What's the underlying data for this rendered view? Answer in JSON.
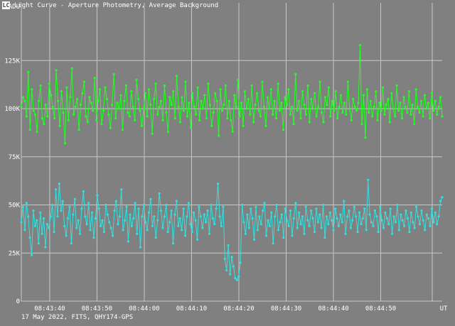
{
  "window": {
    "icon": "app-icon",
    "icon_glyph": "LC",
    "title": "Light Curve - Aperture Photometry, Average Background"
  },
  "footer": {
    "text": "17 May 2022, FITS, QHY174-GPS"
  },
  "colors": {
    "background": "#808080",
    "grid": "#c8c8c8",
    "axis_text": "#ffffff",
    "series_green": "#22ff22",
    "series_cyan": "#33e0e0"
  },
  "chart_data": {
    "type": "line",
    "title": "Light Curve - Aperture Photometry, Average Background",
    "ylabel": "ADU",
    "xlabel": "UT",
    "ylim": [
      0,
      155000
    ],
    "y_ticks": [
      {
        "value": 0,
        "label": "0"
      },
      {
        "value": 25000,
        "label": "25K"
      },
      {
        "value": 50000,
        "label": "50K"
      },
      {
        "value": 75000,
        "label": "75K"
      },
      {
        "value": 100000,
        "label": "100K"
      },
      {
        "value": 125000,
        "label": "125K"
      }
    ],
    "xlim": [
      "08:43:34",
      "08:45:03"
    ],
    "x_ticks": [
      "08:43:40",
      "08:43:50",
      "08:44:00",
      "08:44:10",
      "08:44:20",
      "08:44:30",
      "08:44:40",
      "08:44:50"
    ],
    "series": [
      {
        "color": "#22ff22",
        "x_start": "08:43:34",
        "x_end": "08:45:03",
        "values": [
          101000,
          106000,
          104000,
          96000,
          119000,
          89000,
          110000,
          99000,
          97000,
          88000,
          104000,
          112000,
          95000,
          92000,
          102000,
          96000,
          113000,
          107000,
          101000,
          95000,
          120000,
          104000,
          91000,
          109000,
          98000,
          82000,
          111000,
          94000,
          106000,
          121000,
          97000,
          101000,
          105000,
          89000,
          102000,
          108000,
          114000,
          96000,
          93000,
          106000,
          103000,
          99000,
          116000,
          94000,
          104000,
          110000,
          92000,
          99000,
          111000,
          105000,
          97000,
          90000,
          102000,
          118000,
          95000,
          103000,
          100000,
          107000,
          89000,
          104000,
          112000,
          98000,
          96000,
          109000,
          101000,
          94000,
          115000,
          105000,
          99000,
          91000,
          100000,
          108000,
          96000,
          110000,
          102000,
          87000,
          105000,
          113000,
          97000,
          101000,
          104000,
          94000,
          112000,
          98000,
          88000,
          106000,
          102000,
          109000,
          95000,
          117000,
          101000,
          93000,
          106000,
          99000,
          114000,
          96000,
          103000,
          90000,
          108000,
          101000,
          97000,
          111000,
          94000,
          104000,
          100000,
          107000,
          95000,
          113000,
          102000,
          91000,
          98000,
          108000,
          104000,
          86000,
          110000,
          99000,
          102000,
          112000,
          95000,
          104000,
          94000,
          88000,
          107000,
          101000,
          115000,
          96000,
          103000,
          91000,
          109000,
          100000,
          105000,
          97000,
          112000,
          93000,
          102000,
          108000,
          99000,
          96000,
          114000,
          101000,
          91000,
          106000,
          100000,
          110000,
          97000,
          104000,
          95000,
          113000,
          99000,
          103000,
          89000,
          106000,
          102000,
          110000,
          97000,
          101000,
          92000,
          118000,
          99000,
          104000,
          95000,
          109000,
          102000,
          97000,
          112000,
          93000,
          105000,
          100000,
          108000,
          96000,
          101000,
          114000,
          98000,
          93000,
          106000,
          102000,
          111000,
          96000,
          104000,
          99000,
          109000,
          95000,
          101000,
          107000,
          98000,
          103000,
          97000,
          114000,
          100000,
          94000,
          105000,
          101000,
          99000,
          103000,
          133000,
          92000,
          107000,
          85000,
          110000,
          98000,
          104000,
          96000,
          101000,
          109000,
          94000,
          103000,
          99000,
          111000,
          97000,
          102000,
          105000,
          93000,
          108000,
          100000,
          96000,
          112000,
          99000,
          103000,
          95000,
          106000,
          101000,
          98000,
          109000,
          97000,
          102000,
          92000,
          110000,
          101000,
          98000,
          104000,
          96000,
          107000,
          100000,
          103000,
          95000,
          108000,
          99000,
          104000,
          97000,
          101000,
          106000,
          96000
        ]
      },
      {
        "color": "#33e0e0",
        "x_start": "08:43:34",
        "x_end": "08:45:03",
        "values": [
          41000,
          49000,
          37000,
          51000,
          44000,
          33000,
          24000,
          47000,
          39000,
          42000,
          30000,
          46000,
          35000,
          43000,
          28000,
          40000,
          38000,
          44000,
          50000,
          36000,
          58000,
          44000,
          61000,
          47000,
          52000,
          39000,
          34000,
          43000,
          49000,
          30000,
          45000,
          53000,
          38000,
          42000,
          35000,
          48000,
          57000,
          44000,
          40000,
          51000,
          37000,
          46000,
          33000,
          43000,
          55000,
          48000,
          39000,
          42000,
          36000,
          50000,
          45000,
          41000,
          38000,
          34000,
          47000,
          52000,
          40000,
          44000,
          58000,
          37000,
          42000,
          49000,
          31000,
          45000,
          39000,
          43000,
          51000,
          35000,
          48000,
          28000,
          44000,
          50000,
          41000,
          37000,
          46000,
          53000,
          39000,
          44000,
          33000,
          42000,
          56000,
          47000,
          38000,
          44000,
          50000,
          36000,
          41000,
          47000,
          30000,
          45000,
          52000,
          39000,
          43000,
          37000,
          48000,
          34000,
          44000,
          51000,
          40000,
          36000,
          46000,
          42000,
          32000,
          49000,
          44000,
          38000,
          45000,
          41000,
          47000,
          35000,
          50000,
          43000,
          40000,
          48000,
          61000,
          44000,
          39000,
          49000,
          22000,
          16000,
          29000,
          14000,
          23000,
          18000,
          12000,
          11000,
          13000,
          20000,
          50000,
          41000,
          35000,
          45000,
          38000,
          48000,
          43000,
          32000,
          49000,
          37000,
          44000,
          40000,
          47000,
          51000,
          34000,
          42000,
          39000,
          46000,
          30000,
          44000,
          50000,
          37000,
          41000,
          45000,
          33000,
          48000,
          42000,
          39000,
          47000,
          34000,
          43000,
          51000,
          38000,
          46000,
          40000,
          44000,
          35000,
          49000,
          42000,
          39000,
          47000,
          43000,
          36000,
          48000,
          41000,
          45000,
          38000,
          50000,
          33000,
          44000,
          40000,
          46000,
          42000,
          37000,
          48000,
          43000,
          39000,
          45000,
          41000,
          52000,
          35000,
          44000,
          47000,
          38000,
          42000,
          49000,
          44000,
          36000,
          46000,
          40000,
          43000,
          48000,
          37000,
          63000,
          45000,
          41000,
          39000,
          47000,
          44000,
          36000,
          49000,
          42000,
          38000,
          46000,
          43000,
          40000,
          48000,
          35000,
          44000,
          41000,
          50000,
          37000,
          45000,
          42000,
          39000,
          47000,
          43000,
          36000,
          46000,
          41000,
          38000,
          49000,
          44000,
          40000,
          47000,
          42000,
          37000,
          45000,
          43000,
          39000,
          48000,
          41000,
          46000,
          40000,
          44000,
          52000,
          54000
        ]
      }
    ]
  }
}
